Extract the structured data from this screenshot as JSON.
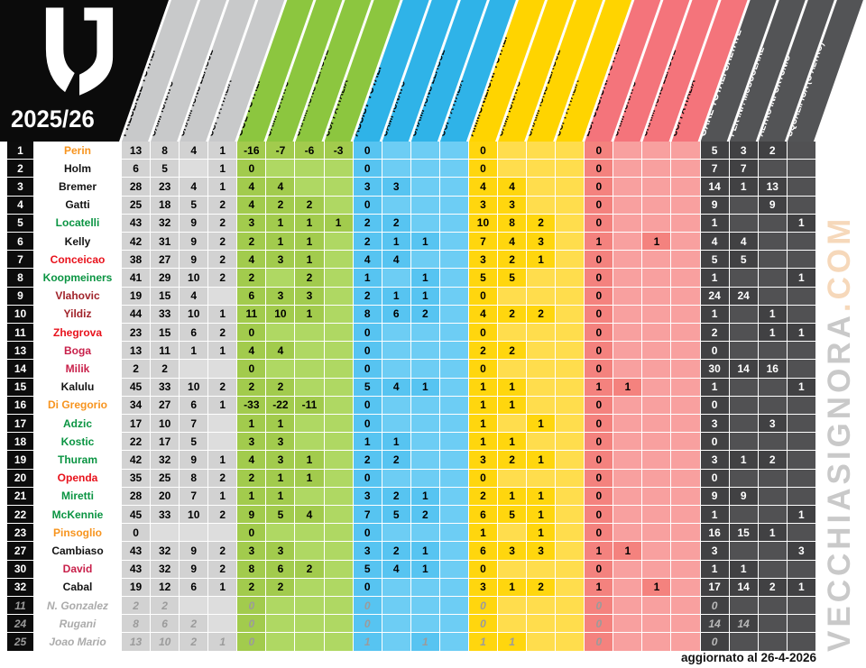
{
  "title_block": {
    "season": "2025/26"
  },
  "footer": {
    "updated": "aggiornato al 26-4-2026"
  },
  "watermark": {
    "main": "VECCHIASIGNORA",
    "suffix": ".COM"
  },
  "name_colors": {
    "orange": "#F7941E",
    "black": "#141414",
    "green": "#0A9442",
    "red": "#E8121C",
    "darkred": "#A1242B",
    "crimson": "#C8204A",
    "gray": "#ABABAB"
  },
  "chart_data": {
    "type": "table",
    "column_groups": [
      {
        "id": "presenze",
        "header_color": "#C8C9CA",
        "filled_color": "#D2D2D2",
        "empty_color": "#DDDDDD",
        "dark": false,
        "cols": [
          "PRESENZE TOTALI",
          "CAMPIONATO",
          "CHAMPIONS LEAGUE",
          "COPPA ITALIA"
        ]
      },
      {
        "id": "gol",
        "header_color": "#8CC63F",
        "filled_color": "#A2CB4D",
        "empty_color": "#AFD863",
        "dark": false,
        "cols": [
          "GOL TOTALI",
          "CAMPIONATO",
          "CHAMPIONS LEAGUE",
          "COPPA ITALIA"
        ]
      },
      {
        "id": "assist",
        "header_color": "#2FB3E8",
        "filled_color": "#57C4F1",
        "empty_color": "#6DCDF4",
        "dark": false,
        "cols": [
          "ASSIST TOTALI",
          "CAMPIONATO",
          "CHAMPIONS LEAGUE",
          "COPPA ITALIA"
        ]
      },
      {
        "id": "ammonizioni",
        "header_color": "#FFD400",
        "filled_color": "#FFD60E",
        "empty_color": "#FFDD4D",
        "dark": false,
        "cols": [
          "AMMONIZIONI TOTALI",
          "CAMPIONATO",
          "CHAMPIONS LEAGUE",
          "COPPA ITALIA"
        ]
      },
      {
        "id": "espulsioni",
        "header_color": "#F4747B",
        "filled_color": "#F4827E",
        "empty_color": "#F8A09F",
        "dark": false,
        "cols": [
          "ESPULSIONI TOTALI",
          "CAMPIONATO",
          "CHAMPIONS LEAGUE",
          "COPPA ITALIA"
        ]
      },
      {
        "id": "gare_saltate",
        "header_color": "#535456",
        "filled_color": "#414143",
        "empty_color": "#515153",
        "dark": true,
        "cols": [
          "GARE TOTALI SALTATE",
          "PER INF. MUSCOLARE",
          "ALTRO INFORTUNIO",
          "SQUALIFICA (O ALTRO)"
        ]
      }
    ],
    "rows": [
      {
        "num": "1",
        "name": "Perin",
        "name_color": "orange",
        "inactive": false,
        "values": [
          "13",
          "8",
          "4",
          "1",
          "-16",
          "-7",
          "-6",
          "-3",
          "0",
          "",
          "",
          "",
          "0",
          "",
          "",
          "",
          "0",
          "",
          "",
          "",
          "5",
          "3",
          "2",
          ""
        ]
      },
      {
        "num": "2",
        "name": "Holm",
        "name_color": "black",
        "inactive": false,
        "values": [
          "6",
          "5",
          "",
          "1",
          "0",
          "",
          "",
          "",
          "0",
          "",
          "",
          "",
          "0",
          "",
          "",
          "",
          "0",
          "",
          "",
          "",
          "7",
          "7",
          "",
          ""
        ]
      },
      {
        "num": "3",
        "name": "Bremer",
        "name_color": "black",
        "inactive": false,
        "values": [
          "28",
          "23",
          "4",
          "1",
          "4",
          "4",
          "",
          "",
          "3",
          "3",
          "",
          "",
          "4",
          "4",
          "",
          "",
          "0",
          "",
          "",
          "",
          "14",
          "1",
          "13",
          ""
        ]
      },
      {
        "num": "4",
        "name": "Gatti",
        "name_color": "black",
        "inactive": false,
        "values": [
          "25",
          "18",
          "5",
          "2",
          "4",
          "2",
          "2",
          "",
          "0",
          "",
          "",
          "",
          "3",
          "3",
          "",
          "",
          "0",
          "",
          "",
          "",
          "9",
          "",
          "9",
          ""
        ]
      },
      {
        "num": "5",
        "name": "Locatelli",
        "name_color": "green",
        "inactive": false,
        "values": [
          "43",
          "32",
          "9",
          "2",
          "3",
          "1",
          "1",
          "1",
          "2",
          "2",
          "",
          "",
          "10",
          "8",
          "2",
          "",
          "0",
          "",
          "",
          "",
          "1",
          "",
          "",
          "1"
        ]
      },
      {
        "num": "6",
        "name": "Kelly",
        "name_color": "black",
        "inactive": false,
        "values": [
          "42",
          "31",
          "9",
          "2",
          "2",
          "1",
          "1",
          "",
          "2",
          "1",
          "1",
          "",
          "7",
          "4",
          "3",
          "",
          "1",
          "",
          "1",
          "",
          "4",
          "4",
          "",
          ""
        ]
      },
      {
        "num": "7",
        "name": "Conceicao",
        "name_color": "red",
        "inactive": false,
        "values": [
          "38",
          "27",
          "9",
          "2",
          "4",
          "3",
          "1",
          "",
          "4",
          "4",
          "",
          "",
          "3",
          "2",
          "1",
          "",
          "0",
          "",
          "",
          "",
          "5",
          "5",
          "",
          ""
        ]
      },
      {
        "num": "8",
        "name": "Koopmeiners",
        "name_color": "green",
        "inactive": false,
        "values": [
          "41",
          "29",
          "10",
          "2",
          "2",
          "",
          "2",
          "",
          "1",
          "",
          "1",
          "",
          "5",
          "5",
          "",
          "",
          "0",
          "",
          "",
          "",
          "1",
          "",
          "",
          "1"
        ]
      },
      {
        "num": "9",
        "name": "Vlahovic",
        "name_color": "darkred",
        "inactive": false,
        "values": [
          "19",
          "15",
          "4",
          "",
          "6",
          "3",
          "3",
          "",
          "2",
          "1",
          "1",
          "",
          "0",
          "",
          "",
          "",
          "0",
          "",
          "",
          "",
          "24",
          "24",
          "",
          ""
        ]
      },
      {
        "num": "10",
        "name": "Yildiz",
        "name_color": "darkred",
        "inactive": false,
        "values": [
          "44",
          "33",
          "10",
          "1",
          "11",
          "10",
          "1",
          "",
          "8",
          "6",
          "2",
          "",
          "4",
          "2",
          "2",
          "",
          "0",
          "",
          "",
          "",
          "1",
          "",
          "1",
          ""
        ]
      },
      {
        "num": "11",
        "name": "Zhegrova",
        "name_color": "red",
        "inactive": false,
        "values": [
          "23",
          "15",
          "6",
          "2",
          "0",
          "",
          "",
          "",
          "0",
          "",
          "",
          "",
          "0",
          "",
          "",
          "",
          "0",
          "",
          "",
          "",
          "2",
          "",
          "1",
          "1"
        ]
      },
      {
        "num": "13",
        "name": "Boga",
        "name_color": "crimson",
        "inactive": false,
        "values": [
          "13",
          "11",
          "1",
          "1",
          "4",
          "4",
          "",
          "",
          "0",
          "",
          "",
          "",
          "2",
          "2",
          "",
          "",
          "0",
          "",
          "",
          "",
          "0",
          "",
          "",
          ""
        ]
      },
      {
        "num": "14",
        "name": "Milik",
        "name_color": "crimson",
        "inactive": false,
        "values": [
          "2",
          "2",
          "",
          "",
          "0",
          "",
          "",
          "",
          "0",
          "",
          "",
          "",
          "0",
          "",
          "",
          "",
          "0",
          "",
          "",
          "",
          "30",
          "14",
          "16",
          ""
        ]
      },
      {
        "num": "15",
        "name": "Kalulu",
        "name_color": "black",
        "inactive": false,
        "values": [
          "45",
          "33",
          "10",
          "2",
          "2",
          "2",
          "",
          "",
          "5",
          "4",
          "1",
          "",
          "1",
          "1",
          "",
          "",
          "1",
          "1",
          "",
          "",
          "1",
          "",
          "",
          "1"
        ]
      },
      {
        "num": "16",
        "name": "Di Gregorio",
        "name_color": "orange",
        "inactive": false,
        "values": [
          "34",
          "27",
          "6",
          "1",
          "-33",
          "-22",
          "-11",
          "",
          "0",
          "",
          "",
          "",
          "1",
          "1",
          "",
          "",
          "0",
          "",
          "",
          "",
          "0",
          "",
          "",
          ""
        ]
      },
      {
        "num": "17",
        "name": "Adzic",
        "name_color": "green",
        "inactive": false,
        "values": [
          "17",
          "10",
          "7",
          "",
          "1",
          "1",
          "",
          "",
          "0",
          "",
          "",
          "",
          "1",
          "",
          "1",
          "",
          "0",
          "",
          "",
          "",
          "3",
          "",
          "3",
          ""
        ]
      },
      {
        "num": "18",
        "name": "Kostic",
        "name_color": "green",
        "inactive": false,
        "values": [
          "22",
          "17",
          "5",
          "",
          "3",
          "3",
          "",
          "",
          "1",
          "1",
          "",
          "",
          "1",
          "1",
          "",
          "",
          "0",
          "",
          "",
          "",
          "0",
          "",
          "",
          ""
        ]
      },
      {
        "num": "19",
        "name": "Thuram",
        "name_color": "green",
        "inactive": false,
        "values": [
          "42",
          "32",
          "9",
          "1",
          "4",
          "3",
          "1",
          "",
          "2",
          "2",
          "",
          "",
          "3",
          "2",
          "1",
          "",
          "0",
          "",
          "",
          "",
          "3",
          "1",
          "2",
          ""
        ]
      },
      {
        "num": "20",
        "name": "Openda",
        "name_color": "red",
        "inactive": false,
        "values": [
          "35",
          "25",
          "8",
          "2",
          "2",
          "1",
          "1",
          "",
          "0",
          "",
          "",
          "",
          "0",
          "",
          "",
          "",
          "0",
          "",
          "",
          "",
          "0",
          "",
          "",
          ""
        ]
      },
      {
        "num": "21",
        "name": "Miretti",
        "name_color": "green",
        "inactive": false,
        "values": [
          "28",
          "20",
          "7",
          "1",
          "1",
          "1",
          "",
          "",
          "3",
          "2",
          "1",
          "",
          "2",
          "1",
          "1",
          "",
          "0",
          "",
          "",
          "",
          "9",
          "9",
          "",
          ""
        ]
      },
      {
        "num": "22",
        "name": "McKennie",
        "name_color": "green",
        "inactive": false,
        "values": [
          "45",
          "33",
          "10",
          "2",
          "9",
          "5",
          "4",
          "",
          "7",
          "5",
          "2",
          "",
          "6",
          "5",
          "1",
          "",
          "0",
          "",
          "",
          "",
          "1",
          "",
          "",
          "1"
        ]
      },
      {
        "num": "23",
        "name": "Pinsoglio",
        "name_color": "orange",
        "inactive": false,
        "values": [
          "0",
          "",
          "",
          "",
          "0",
          "",
          "",
          "",
          "0",
          "",
          "",
          "",
          "1",
          "",
          "1",
          "",
          "0",
          "",
          "",
          "",
          "16",
          "15",
          "1",
          ""
        ]
      },
      {
        "num": "27",
        "name": "Cambiaso",
        "name_color": "black",
        "inactive": false,
        "values": [
          "43",
          "32",
          "9",
          "2",
          "3",
          "3",
          "",
          "",
          "3",
          "2",
          "1",
          "",
          "6",
          "3",
          "3",
          "",
          "1",
          "1",
          "",
          "",
          "3",
          "",
          "",
          "3"
        ]
      },
      {
        "num": "30",
        "name": "David",
        "name_color": "crimson",
        "inactive": false,
        "values": [
          "43",
          "32",
          "9",
          "2",
          "8",
          "6",
          "2",
          "",
          "5",
          "4",
          "1",
          "",
          "0",
          "",
          "",
          "",
          "0",
          "",
          "",
          "",
          "1",
          "1",
          "",
          ""
        ]
      },
      {
        "num": "32",
        "name": "Cabal",
        "name_color": "black",
        "inactive": false,
        "values": [
          "19",
          "12",
          "6",
          "1",
          "2",
          "2",
          "",
          "",
          "0",
          "",
          "",
          "",
          "3",
          "1",
          "2",
          "",
          "1",
          "",
          "1",
          "",
          "17",
          "14",
          "2",
          "1"
        ]
      },
      {
        "num": "11",
        "name": "N. Gonzalez",
        "name_color": "gray",
        "inactive": true,
        "values": [
          "2",
          "2",
          "",
          "",
          "0",
          "",
          "",
          "",
          "0",
          "",
          "",
          "",
          "0",
          "",
          "",
          "",
          "0",
          "",
          "",
          "",
          "0",
          "",
          "",
          ""
        ]
      },
      {
        "num": "24",
        "name": "Rugani",
        "name_color": "gray",
        "inactive": true,
        "values": [
          "8",
          "6",
          "2",
          "",
          "0",
          "",
          "",
          "",
          "0",
          "",
          "",
          "",
          "0",
          "",
          "",
          "",
          "0",
          "",
          "",
          "",
          "14",
          "14",
          "",
          ""
        ]
      },
      {
        "num": "25",
        "name": "Joao Mario",
        "name_color": "gray",
        "inactive": true,
        "values": [
          "13",
          "10",
          "2",
          "1",
          "0",
          "",
          "",
          "",
          "1",
          "",
          "1",
          "",
          "1",
          "1",
          "",
          "",
          "0",
          "",
          "",
          "",
          "0",
          "",
          "",
          ""
        ]
      }
    ]
  }
}
